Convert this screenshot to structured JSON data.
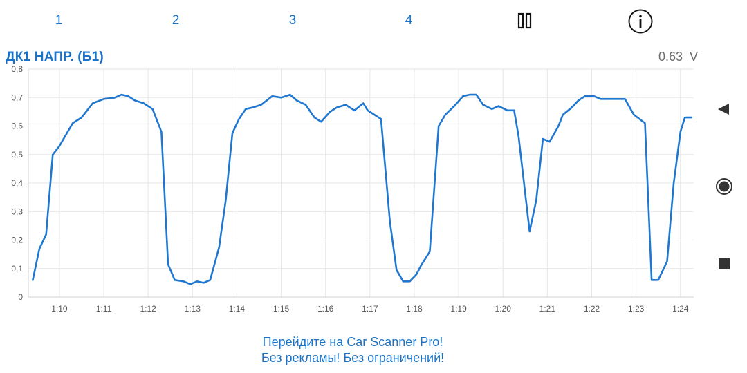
{
  "tabs": [
    "1",
    "2",
    "3",
    "4"
  ],
  "header": {
    "pause_icon": "pause-icon",
    "info_icon": "info-icon"
  },
  "parameter": {
    "name": "ДК1 НАПР. (Б1)",
    "value": "0.63  V"
  },
  "side_controls": [
    "back-triangle-icon",
    "record-circle-icon",
    "stop-square-icon"
  ],
  "promo": {
    "line1": "Перейдите на Car Scanner Pro!",
    "line2": "Без рекламы! Без ограничений!"
  },
  "colors": {
    "accent": "#1a73c8",
    "line": "#1f77d0",
    "grid": "#e6e6e6",
    "axis_text": "#555555",
    "value_text": "#6b6b6b"
  },
  "chart_data": {
    "type": "line",
    "title": "",
    "xlabel": "",
    "ylabel": "",
    "ylim": [
      0,
      0.8
    ],
    "yticks": [
      "0",
      "0,1",
      "0,2",
      "0,3",
      "0,4",
      "0,5",
      "0,6",
      "0,7",
      "0,8"
    ],
    "xlim": [
      "1:09.3",
      "1:24.3"
    ],
    "xticks": [
      "1:10",
      "1:11",
      "1:12",
      "1:13",
      "1:14",
      "1:15",
      "1:16",
      "1:17",
      "1:18",
      "1:19",
      "1:20",
      "1:21",
      "1:22",
      "1:23",
      "1:24"
    ],
    "grid": true,
    "series": [
      {
        "x": [
          "1:09.40",
          "1:09.55",
          "1:09.70",
          "1:09.85",
          "1:10.00",
          "1:10.15",
          "1:10.30",
          "1:10.50",
          "1:10.75",
          "1:11.00",
          "1:11.25",
          "1:11.40",
          "1:11.55",
          "1:11.70",
          "1:11.90",
          "1:12.10",
          "1:12.30",
          "1:12.45",
          "1:12.60",
          "1:12.80",
          "1:12.95",
          "1:13.10",
          "1:13.25",
          "1:13.40",
          "1:13.60",
          "1:13.75",
          "1:13.90",
          "1:14.05",
          "1:14.20",
          "1:14.35",
          "1:14.55",
          "1:14.80",
          "1:15.00",
          "1:15.20",
          "1:15.35",
          "1:15.55",
          "1:15.75",
          "1:15.90",
          "1:16.10",
          "1:16.25",
          "1:16.45",
          "1:16.65",
          "1:16.85",
          "1:16.95",
          "1:17.10",
          "1:17.25",
          "1:17.45",
          "1:17.60",
          "1:17.75",
          "1:17.90",
          "1:18.05",
          "1:18.15",
          "1:18.35",
          "1:18.55",
          "1:18.70",
          "1:18.90",
          "1:19.10",
          "1:19.25",
          "1:19.40",
          "1:19.55",
          "1:19.75",
          "1:19.90",
          "1:20.10",
          "1:20.25",
          "1:20.35",
          "1:20.60",
          "1:20.75",
          "1:20.90",
          "1:21.05",
          "1:21.25",
          "1:21.35",
          "1:21.55",
          "1:21.70",
          "1:21.85",
          "1:22.05",
          "1:22.20",
          "1:22.55",
          "1:22.75",
          "1:22.95",
          "1:23.20",
          "1:23.35",
          "1:23.50",
          "1:23.70",
          "1:23.85",
          "1:24.00",
          "1:24.10",
          "1:24.25"
        ],
        "y": [
          0.06,
          0.17,
          0.22,
          0.5,
          0.53,
          0.57,
          0.61,
          0.63,
          0.68,
          0.695,
          0.7,
          0.71,
          0.705,
          0.69,
          0.68,
          0.66,
          0.58,
          0.115,
          0.06,
          0.055,
          0.045,
          0.055,
          0.05,
          0.06,
          0.175,
          0.34,
          0.575,
          0.625,
          0.66,
          0.665,
          0.675,
          0.705,
          0.7,
          0.71,
          0.69,
          0.675,
          0.63,
          0.615,
          0.65,
          0.665,
          0.675,
          0.655,
          0.68,
          0.655,
          0.64,
          0.625,
          0.265,
          0.095,
          0.055,
          0.055,
          0.08,
          0.11,
          0.16,
          0.6,
          0.64,
          0.67,
          0.705,
          0.71,
          0.71,
          0.675,
          0.66,
          0.67,
          0.655,
          0.655,
          0.565,
          0.23,
          0.34,
          0.555,
          0.545,
          0.6,
          0.64,
          0.665,
          0.69,
          0.705,
          0.705,
          0.695,
          0.695,
          0.695,
          0.64,
          0.61,
          0.06,
          0.06,
          0.125,
          0.4,
          0.58,
          0.63,
          0.63
        ]
      }
    ]
  }
}
